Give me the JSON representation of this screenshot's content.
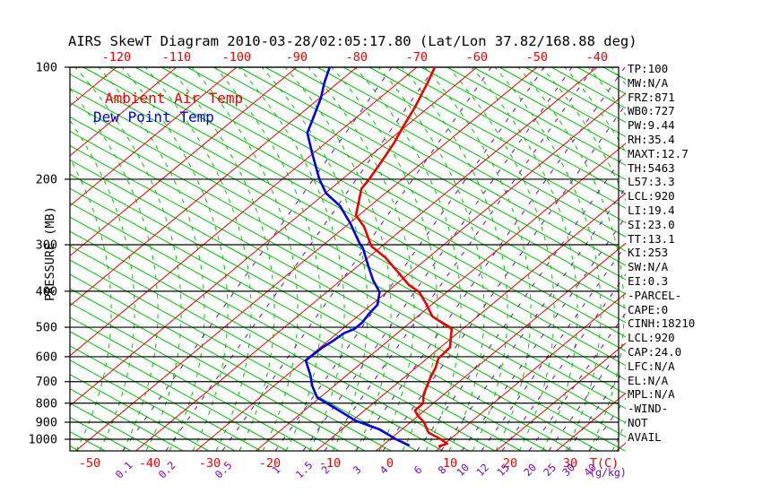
{
  "chart_data": {
    "type": "line",
    "subtype": "skewt-log-p-sounding",
    "title": "AIRS SkewT Diagram 2010-03-28/02:05:17.80 (Lat/Lon 37.82/168.88 deg)",
    "xlabel": "T(C)",
    "x2label": "(g/kg)",
    "ylabel": "PRESSURE (MB)",
    "y_axis": {
      "scale": "log",
      "unit": "mb",
      "range": [
        100,
        1050
      ]
    },
    "pressure_ticks": [
      100,
      200,
      300,
      400,
      500,
      600,
      700,
      800,
      900,
      1000
    ],
    "temp_ticks_bottom": [
      -50,
      -40,
      -30,
      -20,
      -10,
      0,
      10,
      20,
      30
    ],
    "temp_ticks_top": [
      -120,
      -110,
      -100,
      -90,
      -80,
      -70,
      -60,
      -50,
      -40
    ],
    "mixing_ratio_labels": [
      "0.1",
      "0.2",
      "0.5",
      "1",
      "1.5",
      "2",
      "3",
      "4",
      "6",
      "8",
      "10",
      "12",
      "15",
      "20",
      "25",
      "30",
      "40"
    ],
    "colors": {
      "isotherm": "#ee0000",
      "dry_adiabat": "#00c400",
      "moist_adiabat": "#00c400",
      "mixing_ratio": "#7a00be",
      "pressure_line": "#000000",
      "ambient": "#ee0000",
      "dewpoint": "#0000e0"
    },
    "series": [
      {
        "name": "Ambient Air Temp",
        "color": "#ee0000",
        "units": [
          "mb",
          "degC"
        ],
        "points": [
          [
            1045,
            9.5
          ],
          [
            1028,
            10.4
          ],
          [
            1000,
            8.5
          ],
          [
            960,
            5.1
          ],
          [
            922,
            3.3
          ],
          [
            899,
            2.2
          ],
          [
            866,
            0.0
          ],
          [
            837,
            -1.6
          ],
          [
            800,
            -1.7
          ],
          [
            760,
            -3.3
          ],
          [
            719,
            -4.5
          ],
          [
            680,
            -5.7
          ],
          [
            643,
            -6.7
          ],
          [
            607,
            -8.1
          ],
          [
            566,
            -8.4
          ],
          [
            530,
            -10.4
          ],
          [
            505,
            -11.8
          ],
          [
            467,
            -17.6
          ],
          [
            435,
            -20.8
          ],
          [
            402,
            -24.6
          ],
          [
            385,
            -27.7
          ],
          [
            353,
            -32.5
          ],
          [
            325,
            -37.1
          ],
          [
            303,
            -41.7
          ],
          [
            268,
            -46.9
          ],
          [
            250,
            -50.5
          ],
          [
            212,
            -54.9
          ],
          [
            200,
            -55.5
          ],
          [
            179,
            -57.0
          ],
          [
            160,
            -58.6
          ],
          [
            146,
            -60.2
          ],
          [
            128,
            -62.3
          ],
          [
            110,
            -65.1
          ],
          [
            100,
            -67.0
          ]
        ]
      },
      {
        "name": "Dew Point Temp",
        "color": "#0000e0",
        "units": [
          "mb",
          "degC"
        ],
        "points": [
          [
            1040,
            4.5
          ],
          [
            1000,
            1.0
          ],
          [
            941,
            -3.7
          ],
          [
            892,
            -9.4
          ],
          [
            832,
            -14.7
          ],
          [
            772,
            -20.5
          ],
          [
            719,
            -23.6
          ],
          [
            672,
            -26.1
          ],
          [
            614,
            -29.8
          ],
          [
            566,
            -29.6
          ],
          [
            546,
            -29.2
          ],
          [
            519,
            -28.9
          ],
          [
            505,
            -28.0
          ],
          [
            485,
            -28.0
          ],
          [
            460,
            -28.6
          ],
          [
            435,
            -29.0
          ],
          [
            402,
            -31.2
          ],
          [
            374,
            -34.6
          ],
          [
            343,
            -38.2
          ],
          [
            306,
            -42.8
          ],
          [
            296,
            -44.5
          ],
          [
            264,
            -49.6
          ],
          [
            236,
            -55.0
          ],
          [
            218,
            -59.9
          ],
          [
            200,
            -63.8
          ],
          [
            169,
            -70.5
          ],
          [
            150,
            -75.1
          ],
          [
            138,
            -76.9
          ],
          [
            121,
            -79.8
          ],
          [
            110,
            -82.3
          ],
          [
            100,
            -84.5
          ]
        ]
      }
    ]
  },
  "panel": {
    "lines": [
      "TP:100",
      "MW:N/A",
      "FRZ:871",
      "WB0:727",
      "PW:9.44",
      "RH:35.4",
      "MAXT:12.7",
      "TH:5463",
      "L57:3.3",
      "LCL:920",
      "LI:19.4",
      "SI:23.0",
      "TT:13.1",
      "KI:253",
      "SW:N/A",
      "EI:0.3",
      "-PARCEL-",
      "CAPE:0",
      "CINH:18210",
      "LCL:920",
      "CAP:24.0",
      "LFC:N/A",
      "EL:N/A",
      "MPL:N/A",
      "-WIND-",
      "NOT",
      "AVAIL"
    ]
  }
}
